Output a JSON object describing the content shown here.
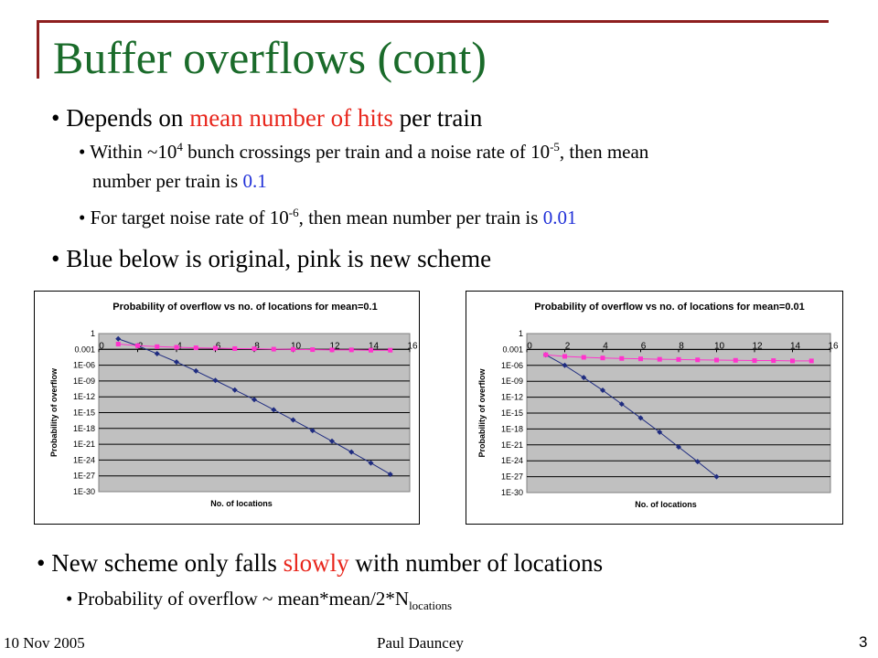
{
  "title": "Buffer overflows (cont)",
  "bullets": {
    "b1": {
      "pre": "Depends on ",
      "highlight": "mean number  of hits",
      "post": " per train"
    },
    "b1_1": {
      "t1": "Within ~10",
      "sup1": "4",
      "t2": " bunch crossings per train and a noise rate of 10",
      "sup2": "-5",
      "t3": ", then mean",
      "line2": "number per train is ",
      "value": "0.1"
    },
    "b1_2": {
      "t1": "For target noise rate of 10",
      "sup1": "-6",
      "t2": ", then mean  number per train is ",
      "value": "0.01"
    },
    "b2": "Blue below is original, pink is new scheme",
    "b3": {
      "pre": "New scheme only falls ",
      "highlight": "slowly",
      "post": " with number of locations"
    },
    "b3_1": {
      "text": "Probability of overflow ~ mean*mean/2*N",
      "sub": "locations"
    }
  },
  "footer": {
    "date": "10 Nov 2005",
    "author": "Paul Dauncey",
    "page": "3"
  },
  "colors": {
    "title": "#1a6b2a",
    "frame": "#8e1f1f",
    "highlight_red": "#e8261c",
    "highlight_blue": "#2030d8",
    "plot_area": "#c0c0c0",
    "series_original": "#1f2c80",
    "series_new": "#ff33cc"
  },
  "chart_data": [
    {
      "type": "line",
      "title": "Probability of overflow vs no. of locations for mean=0.1",
      "xlabel": "No. of locations",
      "ylabel": "Probability of overflow",
      "xlim": [
        0,
        16
      ],
      "x_ticks": [
        "0",
        "2",
        "4",
        "6",
        "8",
        "10",
        "12",
        "14",
        "16"
      ],
      "y_ticks": [
        "1",
        "0.001",
        "1E-06",
        "1E-09",
        "1E-12",
        "1E-15",
        "1E-18",
        "1E-21",
        "1E-24",
        "1E-27",
        "1E-30"
      ],
      "y_log": true,
      "ylim": [
        1e-30,
        1
      ],
      "grid": true,
      "legend": "none",
      "series": [
        {
          "x": [
            1,
            2,
            3,
            4,
            5,
            6,
            7,
            8,
            9,
            10,
            11,
            12,
            13,
            14,
            15
          ],
          "values": [
            0.1,
            0.005,
            0.00015,
            4e-06,
            8e-08,
            1.3e-09,
            2e-11,
            3e-13,
            3.5e-15,
            4e-17,
            4e-19,
            3.8e-21,
            3.3e-23,
            2.8e-25,
            2e-27
          ],
          "color": "#1f2c80",
          "marker": "diamond"
        },
        {
          "x": [
            1,
            2,
            3,
            4,
            5,
            6,
            7,
            8,
            9,
            10,
            11,
            12,
            13,
            14,
            15
          ],
          "values": [
            0.01,
            0.005,
            0.0033,
            0.0025,
            0.002,
            0.0017,
            0.0014,
            0.0013,
            0.0011,
            0.001,
            0.0009,
            0.0008,
            0.0008,
            0.0007,
            0.0007
          ],
          "color": "#ff33cc",
          "marker": "square"
        }
      ]
    },
    {
      "type": "line",
      "title": "Probability of overflow vs no. of locations for mean=0.01",
      "xlabel": "No. of locations",
      "ylabel": "Probability of overflow",
      "xlim": [
        0,
        16
      ],
      "x_ticks": [
        "0",
        "2",
        "4",
        "6",
        "8",
        "10",
        "12",
        "14",
        "16"
      ],
      "y_ticks": [
        "1",
        "0.001",
        "1E-06",
        "1E-09",
        "1E-12",
        "1E-15",
        "1E-18",
        "1E-21",
        "1E-24",
        "1E-27",
        "1E-30"
      ],
      "y_log": true,
      "ylim": [
        1e-30,
        1
      ],
      "grid": true,
      "legend": "none",
      "series": [
        {
          "x": [
            1,
            2,
            3,
            4,
            5,
            6,
            7,
            8,
            9,
            10
          ],
          "values": [
            0.0001,
            1e-06,
            5e-09,
            2e-11,
            5e-14,
            1.2e-16,
            2.5e-19,
            4e-22,
            7e-25,
            1e-27
          ],
          "color": "#1f2c80",
          "marker": "diamond"
        },
        {
          "x": [
            1,
            2,
            3,
            4,
            5,
            6,
            7,
            8,
            9,
            10,
            11,
            12,
            13,
            14,
            15
          ],
          "values": [
            0.0001,
            5e-05,
            3.3e-05,
            2.5e-05,
            2e-05,
            1.7e-05,
            1.4e-05,
            1.3e-05,
            1.1e-05,
            1e-05,
            9e-06,
            8e-06,
            8e-06,
            7e-06,
            7e-06
          ],
          "color": "#ff33cc",
          "marker": "square"
        }
      ]
    }
  ]
}
